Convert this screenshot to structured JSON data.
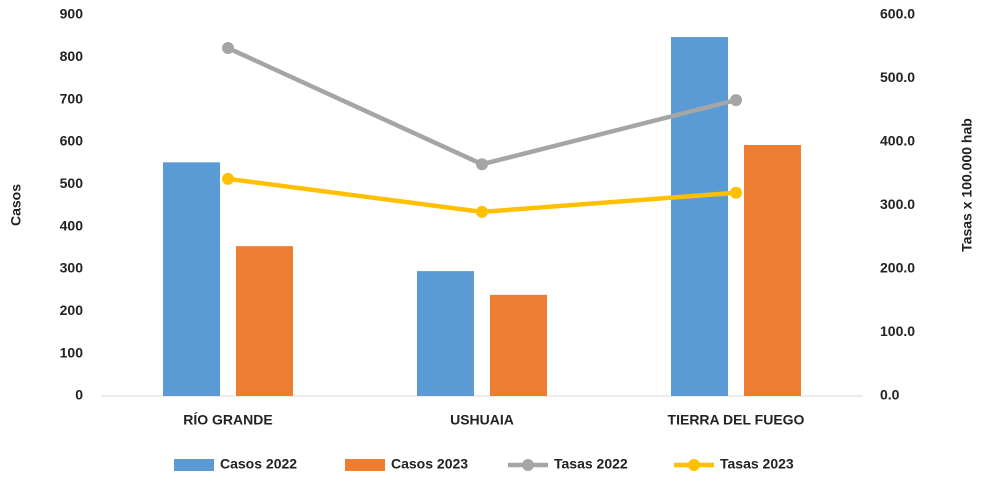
{
  "chart_data": {
    "type": "bar+line",
    "y_label": "Casos",
    "y2_label": "Tasas x 100.000 hab",
    "categories": [
      "RÍO GRANDE",
      "USHUAIA",
      "TIERRA DEL FUEGO"
    ],
    "series": [
      {
        "name": "Casos 2022",
        "type": "bar",
        "color": "#5b9bd5",
        "values": [
          552,
          295,
          848
        ]
      },
      {
        "name": "Casos 2023",
        "type": "bar",
        "color": "#ed7d31",
        "values": [
          354,
          239,
          593
        ]
      },
      {
        "name": "Tasas 2022",
        "type": "line",
        "axis": "y2",
        "color": "#a5a5a5",
        "values": [
          548,
          365,
          466
        ]
      },
      {
        "name": "Tasas 2023",
        "type": "line",
        "axis": "y2",
        "color": "#ffc000",
        "values": [
          342,
          290,
          320
        ]
      }
    ],
    "ylim": [
      0,
      900
    ],
    "yticks": [
      0,
      100,
      200,
      300,
      400,
      500,
      600,
      700,
      800,
      900
    ],
    "y2lim": [
      0,
      600
    ],
    "y2ticks": [
      {
        "value": 0,
        "label": "0.0"
      },
      {
        "value": 100,
        "label": "100.0"
      },
      {
        "value": 200,
        "label": "200.0"
      },
      {
        "value": 300,
        "label": "300.0"
      },
      {
        "value": 400,
        "label": "400.0"
      },
      {
        "value": 500,
        "label": "500.0"
      },
      {
        "value": 600,
        "label": "600.0"
      }
    ]
  }
}
